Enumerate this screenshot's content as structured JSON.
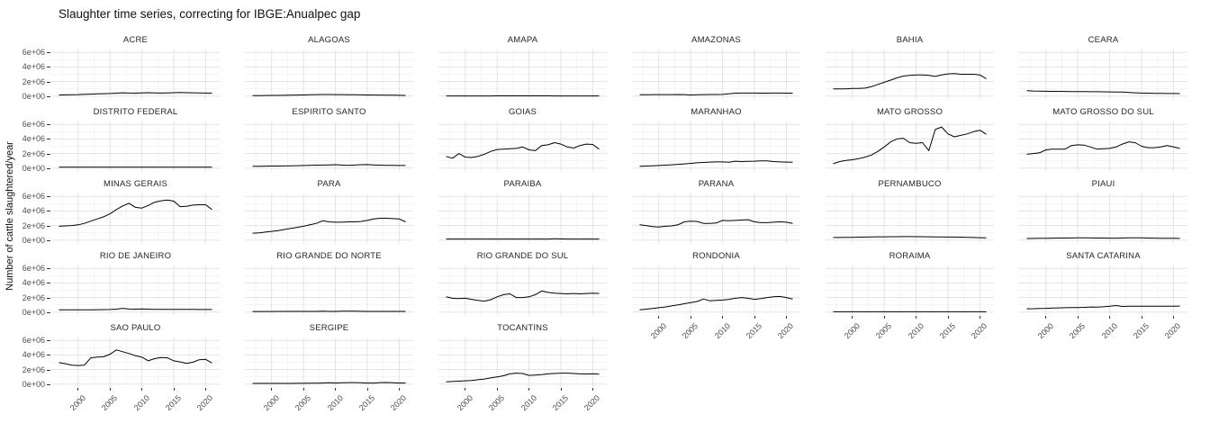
{
  "title": "Slaughter time series, correcting for IBGE:Anualpec gap",
  "y_axis": {
    "label": "Number of cattle slaughtered/year",
    "ticks": [
      "6e+06",
      "4e+06",
      "2e+06",
      "0e+00"
    ],
    "tick_values_millions": [
      6,
      4,
      2,
      0
    ]
  },
  "x_axis": {
    "ticks": [
      "2000",
      "2005",
      "2010",
      "2015",
      "2020"
    ],
    "tick_values": [
      2000,
      2005,
      2010,
      2015,
      2020
    ]
  },
  "colors": {
    "background": "#ffffff",
    "line": "#000000",
    "grid_major": "#e3e3e3",
    "grid_minor": "#f2f2f2",
    "tick_text": "#4d4d4d",
    "strip_text": "#262626",
    "title_text": "#111111"
  },
  "chart_data": {
    "type": "line",
    "title": "Slaughter time series, correcting for IBGE:Anualpec gap",
    "xlabel": "",
    "ylabel": "Number of cattle slaughtered/year",
    "legend": "none",
    "grid": true,
    "facet_layout": {
      "rows": 5,
      "cols": 6
    },
    "ylim_millions": [
      0,
      6
    ],
    "x_major_ticks": [
      2000,
      2005,
      2010,
      2015,
      2020
    ],
    "x_minor_ticks": [
      1997.5,
      2002.5,
      2007.5,
      2012.5,
      2017.5
    ],
    "y_major_ticks_millions": [
      0,
      2,
      4,
      6
    ],
    "y_minor_ticks_millions": [
      1,
      3,
      5
    ],
    "values_unit": "millions of cattle per year (axis labels 0e+00 to 6e+06)",
    "x_years": [
      1997,
      1998,
      1999,
      2000,
      2001,
      2002,
      2003,
      2004,
      2005,
      2006,
      2007,
      2008,
      2009,
      2010,
      2011,
      2012,
      2013,
      2014,
      2015,
      2016,
      2017,
      2018,
      2019,
      2020,
      2021
    ],
    "facets": [
      {
        "name": "ACRE",
        "x_axis": false,
        "values": [
          0.15,
          0.17,
          0.19,
          0.21,
          0.24,
          0.27,
          0.3,
          0.33,
          0.36,
          0.4,
          0.45,
          0.42,
          0.4,
          0.44,
          0.47,
          0.44,
          0.41,
          0.44,
          0.47,
          0.49,
          0.47,
          0.45,
          0.43,
          0.41,
          0.4
        ]
      },
      {
        "name": "ALAGOAS",
        "x_axis": false,
        "values": [
          0.06,
          0.07,
          0.08,
          0.09,
          0.1,
          0.11,
          0.12,
          0.14,
          0.16,
          0.18,
          0.2,
          0.22,
          0.22,
          0.21,
          0.2,
          0.19,
          0.18,
          0.17,
          0.16,
          0.15,
          0.14,
          0.13,
          0.12,
          0.11,
          0.1
        ]
      },
      {
        "name": "AMAPA",
        "x_axis": false,
        "values": [
          0.02,
          0.02,
          0.02,
          0.02,
          0.02,
          0.02,
          0.02,
          0.02,
          0.03,
          0.03,
          0.03,
          0.03,
          0.03,
          0.03,
          0.03,
          0.03,
          0.03,
          0.02,
          0.02,
          0.02,
          0.02,
          0.02,
          0.02,
          0.02,
          0.02
        ]
      },
      {
        "name": "AMAZONAS",
        "x_axis": false,
        "values": [
          0.18,
          0.19,
          0.2,
          0.2,
          0.21,
          0.21,
          0.22,
          0.2,
          0.16,
          0.18,
          0.2,
          0.22,
          0.22,
          0.23,
          0.3,
          0.4,
          0.42,
          0.42,
          0.41,
          0.4,
          0.4,
          0.41,
          0.41,
          0.4,
          0.4
        ]
      },
      {
        "name": "BAHIA",
        "x_axis": false,
        "values": [
          1.0,
          1.0,
          1.0,
          1.05,
          1.05,
          1.1,
          1.3,
          1.6,
          1.9,
          2.2,
          2.5,
          2.75,
          2.85,
          2.9,
          2.9,
          2.85,
          2.7,
          2.9,
          3.05,
          3.1,
          3.0,
          3.0,
          3.0,
          2.9,
          2.4
        ]
      },
      {
        "name": "CEARA",
        "x_axis": false,
        "values": [
          0.75,
          0.7,
          0.68,
          0.66,
          0.65,
          0.65,
          0.64,
          0.63,
          0.62,
          0.61,
          0.6,
          0.6,
          0.59,
          0.58,
          0.57,
          0.55,
          0.5,
          0.45,
          0.42,
          0.4,
          0.38,
          0.37,
          0.36,
          0.35,
          0.34
        ]
      },
      {
        "name": "DISTRITO FEDERAL",
        "x_axis": false,
        "values": [
          0.12,
          0.12,
          0.12,
          0.12,
          0.12,
          0.12,
          0.12,
          0.12,
          0.12,
          0.12,
          0.12,
          0.12,
          0.12,
          0.12,
          0.12,
          0.12,
          0.12,
          0.12,
          0.12,
          0.12,
          0.12,
          0.12,
          0.12,
          0.12,
          0.12
        ]
      },
      {
        "name": "ESPIRITO SANTO",
        "x_axis": false,
        "values": [
          0.25,
          0.26,
          0.27,
          0.28,
          0.28,
          0.29,
          0.3,
          0.33,
          0.36,
          0.38,
          0.4,
          0.42,
          0.44,
          0.46,
          0.42,
          0.38,
          0.42,
          0.46,
          0.48,
          0.44,
          0.4,
          0.38,
          0.37,
          0.36,
          0.35
        ]
      },
      {
        "name": "GOIAS",
        "x_axis": false,
        "values": [
          1.6,
          1.35,
          2.0,
          1.5,
          1.45,
          1.6,
          1.9,
          2.3,
          2.55,
          2.6,
          2.65,
          2.7,
          2.9,
          2.5,
          2.4,
          3.1,
          3.2,
          3.5,
          3.3,
          2.9,
          2.75,
          3.1,
          3.3,
          3.25,
          2.6
        ]
      },
      {
        "name": "MARANHAO",
        "x_axis": false,
        "values": [
          0.25,
          0.28,
          0.32,
          0.36,
          0.4,
          0.45,
          0.52,
          0.58,
          0.65,
          0.72,
          0.78,
          0.82,
          0.85,
          0.85,
          0.8,
          0.95,
          0.9,
          0.92,
          0.95,
          1.0,
          1.0,
          0.9,
          0.85,
          0.82,
          0.8
        ]
      },
      {
        "name": "MATO GROSSO",
        "x_axis": false,
        "values": [
          0.6,
          0.9,
          1.05,
          1.15,
          1.3,
          1.5,
          1.8,
          2.3,
          2.9,
          3.6,
          4.0,
          4.1,
          3.5,
          3.4,
          3.5,
          2.4,
          5.3,
          5.65,
          4.7,
          4.3,
          4.5,
          4.7,
          5.0,
          5.2,
          4.65
        ]
      },
      {
        "name": "MATO GROSSO DO SUL",
        "x_axis": false,
        "values": [
          1.9,
          2.0,
          2.1,
          2.5,
          2.6,
          2.6,
          2.6,
          3.1,
          3.2,
          3.15,
          2.9,
          2.6,
          2.65,
          2.7,
          2.9,
          3.3,
          3.6,
          3.5,
          3.0,
          2.8,
          2.8,
          2.9,
          3.1,
          2.9,
          2.7
        ]
      },
      {
        "name": "MINAS GERAIS",
        "x_axis": false,
        "values": [
          1.9,
          1.95,
          2.0,
          2.1,
          2.3,
          2.6,
          2.9,
          3.2,
          3.6,
          4.2,
          4.7,
          5.05,
          4.5,
          4.4,
          4.75,
          5.2,
          5.4,
          5.5,
          5.35,
          4.6,
          4.65,
          4.8,
          4.85,
          4.85,
          4.2
        ]
      },
      {
        "name": "PARA",
        "x_axis": false,
        "values": [
          0.95,
          1.0,
          1.1,
          1.2,
          1.3,
          1.45,
          1.6,
          1.75,
          1.9,
          2.1,
          2.3,
          2.65,
          2.5,
          2.45,
          2.45,
          2.5,
          2.5,
          2.55,
          2.7,
          2.9,
          3.0,
          3.0,
          2.95,
          2.9,
          2.5
        ]
      },
      {
        "name": "PARAIBA",
        "x_axis": false,
        "values": [
          0.15,
          0.15,
          0.14,
          0.14,
          0.14,
          0.14,
          0.14,
          0.14,
          0.15,
          0.15,
          0.15,
          0.15,
          0.15,
          0.15,
          0.15,
          0.15,
          0.15,
          0.18,
          0.16,
          0.15,
          0.15,
          0.15,
          0.15,
          0.15,
          0.15
        ]
      },
      {
        "name": "PARANA",
        "x_axis": false,
        "values": [
          2.1,
          2.0,
          1.85,
          1.8,
          1.9,
          1.95,
          2.1,
          2.5,
          2.6,
          2.55,
          2.3,
          2.3,
          2.35,
          2.7,
          2.65,
          2.7,
          2.75,
          2.8,
          2.5,
          2.4,
          2.4,
          2.45,
          2.5,
          2.45,
          2.3
        ]
      },
      {
        "name": "PERNAMBUCO",
        "x_axis": false,
        "values": [
          0.35,
          0.36,
          0.37,
          0.38,
          0.4,
          0.42,
          0.43,
          0.45,
          0.45,
          0.46,
          0.47,
          0.48,
          0.48,
          0.47,
          0.46,
          0.45,
          0.44,
          0.43,
          0.42,
          0.41,
          0.4,
          0.38,
          0.35,
          0.33,
          0.32
        ]
      },
      {
        "name": "PIAUI",
        "x_axis": false,
        "values": [
          0.22,
          0.23,
          0.25,
          0.26,
          0.27,
          0.28,
          0.28,
          0.29,
          0.3,
          0.3,
          0.29,
          0.28,
          0.28,
          0.27,
          0.27,
          0.28,
          0.3,
          0.32,
          0.3,
          0.28,
          0.27,
          0.26,
          0.25,
          0.24,
          0.23
        ]
      },
      {
        "name": "RIO DE JANEIRO",
        "x_axis": false,
        "values": [
          0.3,
          0.3,
          0.31,
          0.31,
          0.32,
          0.32,
          0.33,
          0.34,
          0.35,
          0.4,
          0.52,
          0.42,
          0.4,
          0.44,
          0.4,
          0.38,
          0.37,
          0.37,
          0.38,
          0.38,
          0.38,
          0.37,
          0.36,
          0.36,
          0.35
        ]
      },
      {
        "name": "RIO GRANDE DO NORTE",
        "x_axis": false,
        "values": [
          0.08,
          0.08,
          0.08,
          0.08,
          0.09,
          0.09,
          0.09,
          0.09,
          0.1,
          0.1,
          0.1,
          0.12,
          0.1,
          0.1,
          0.12,
          0.13,
          0.12,
          0.11,
          0.1,
          0.1,
          0.1,
          0.09,
          0.09,
          0.09,
          0.09
        ]
      },
      {
        "name": "RIO GRANDE DO SUL",
        "x_axis": false,
        "values": [
          2.1,
          1.9,
          1.85,
          1.9,
          1.75,
          1.6,
          1.5,
          1.7,
          2.1,
          2.4,
          2.5,
          2.0,
          2.0,
          2.1,
          2.4,
          2.9,
          2.7,
          2.6,
          2.55,
          2.5,
          2.55,
          2.5,
          2.55,
          2.6,
          2.55
        ]
      },
      {
        "name": "RONDONIA",
        "x_axis": true,
        "values": [
          0.3,
          0.4,
          0.5,
          0.6,
          0.7,
          0.85,
          1.0,
          1.15,
          1.3,
          1.45,
          1.8,
          1.55,
          1.6,
          1.65,
          1.75,
          1.9,
          2.0,
          1.9,
          1.75,
          1.85,
          2.0,
          2.1,
          2.15,
          2.0,
          1.8
        ]
      },
      {
        "name": "RORAIMA",
        "x_axis": true,
        "values": [
          0.05,
          0.05,
          0.05,
          0.05,
          0.05,
          0.05,
          0.05,
          0.05,
          0.05,
          0.05,
          0.05,
          0.05,
          0.05,
          0.05,
          0.05,
          0.05,
          0.05,
          0.05,
          0.05,
          0.05,
          0.05,
          0.05,
          0.05,
          0.05,
          0.05
        ]
      },
      {
        "name": "SANTA CATARINA",
        "x_axis": true,
        "values": [
          0.45,
          0.47,
          0.5,
          0.52,
          0.55,
          0.58,
          0.6,
          0.62,
          0.63,
          0.65,
          0.7,
          0.68,
          0.72,
          0.8,
          0.9,
          0.78,
          0.8,
          0.8,
          0.8,
          0.8,
          0.8,
          0.8,
          0.8,
          0.8,
          0.82
        ]
      },
      {
        "name": "SAO PAULO",
        "x_axis": true,
        "values": [
          2.95,
          2.8,
          2.6,
          2.55,
          2.6,
          3.6,
          3.7,
          3.75,
          4.1,
          4.7,
          4.45,
          4.2,
          3.9,
          3.7,
          3.2,
          3.5,
          3.65,
          3.6,
          3.2,
          3.05,
          2.85,
          3.0,
          3.35,
          3.4,
          2.9
        ]
      },
      {
        "name": "SERGIPE",
        "x_axis": true,
        "values": [
          0.1,
          0.1,
          0.1,
          0.1,
          0.1,
          0.1,
          0.1,
          0.11,
          0.11,
          0.12,
          0.12,
          0.15,
          0.18,
          0.15,
          0.18,
          0.2,
          0.2,
          0.18,
          0.15,
          0.15,
          0.2,
          0.22,
          0.18,
          0.15,
          0.15
        ]
      },
      {
        "name": "TOCANTINS",
        "x_axis": true,
        "values": [
          0.3,
          0.35,
          0.4,
          0.45,
          0.5,
          0.6,
          0.7,
          0.85,
          1.0,
          1.15,
          1.4,
          1.5,
          1.45,
          1.2,
          1.25,
          1.3,
          1.4,
          1.45,
          1.5,
          1.5,
          1.45,
          1.4,
          1.38,
          1.4,
          1.35
        ]
      }
    ]
  }
}
